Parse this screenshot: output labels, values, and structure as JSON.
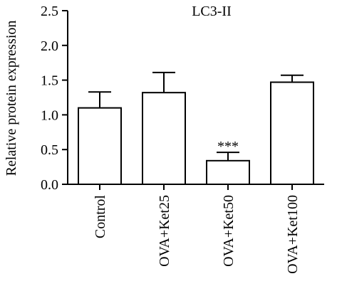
{
  "chart_data": {
    "type": "bar",
    "title": "LC3-II",
    "xlabel": "",
    "ylabel": "Relative protein expression",
    "ylim": [
      0,
      2.5
    ],
    "yticks": [
      0.0,
      0.5,
      1.0,
      1.5,
      2.0,
      2.5
    ],
    "ytick_labels": [
      "0.0",
      "0.5",
      "1.0",
      "1.5",
      "2.0",
      "2.5"
    ],
    "categories": [
      "Control",
      "OVA+Ket25",
      "OVA+Ket50",
      "OVA+Ket100"
    ],
    "values": [
      1.1,
      1.32,
      0.34,
      1.47
    ],
    "errors": [
      0.23,
      0.29,
      0.12,
      0.1
    ],
    "annotations": [
      "",
      "",
      "***",
      ""
    ],
    "bar_fill": "#ffffff",
    "bar_stroke": "#000000",
    "grid": false,
    "legend": "none"
  }
}
